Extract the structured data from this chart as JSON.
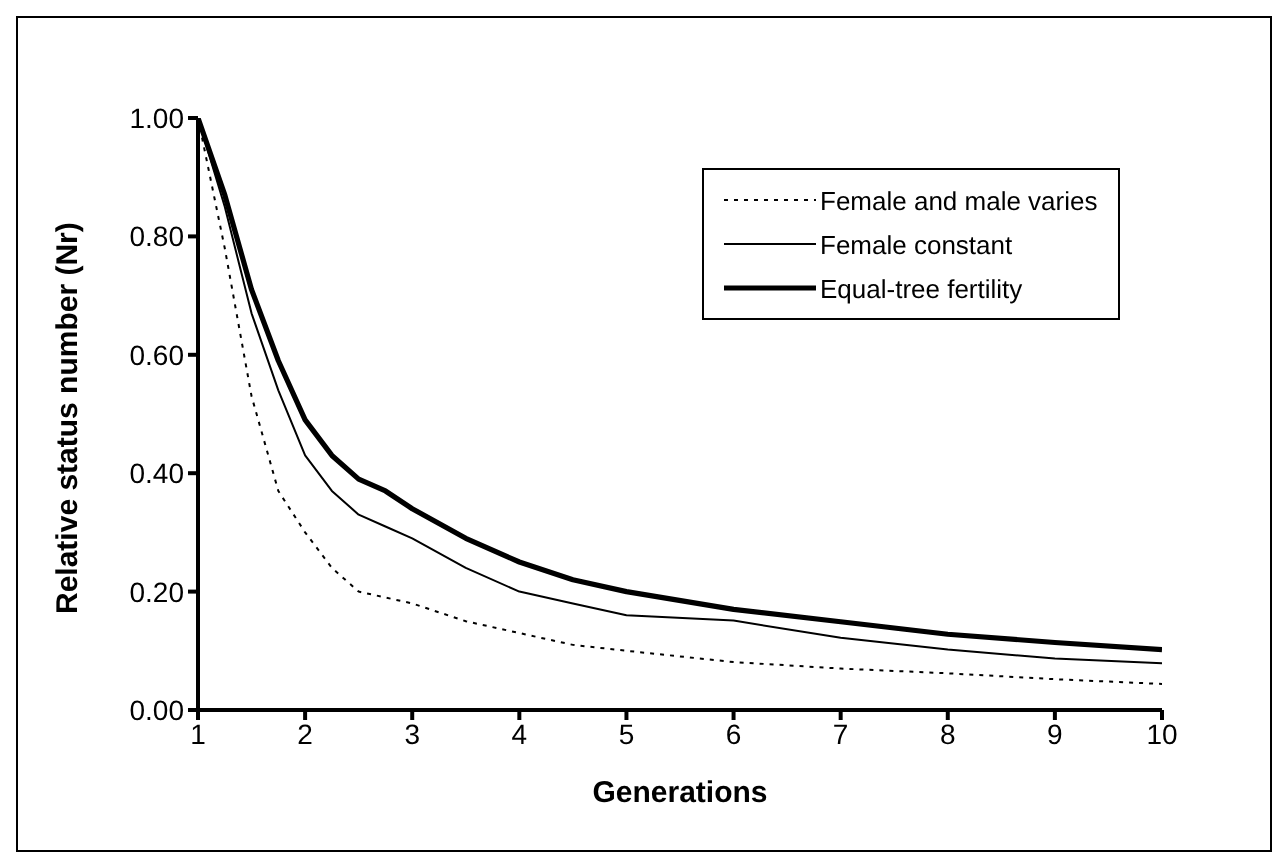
{
  "chart_data": {
    "type": "line",
    "xlabel": "Generations",
    "ylabel": "Relative status number (Nr)",
    "x": [
      1,
      1.25,
      1.5,
      1.75,
      2,
      2.25,
      2.5,
      2.75,
      3,
      3.5,
      4,
      4.5,
      5,
      6,
      7,
      8,
      9,
      10
    ],
    "series": [
      {
        "name": "Female and male varies",
        "color": "#000000",
        "line_style": "dotted",
        "values": [
          1,
          0.78,
          0.53,
          0.37,
          0.3,
          0.24,
          0.2,
          0.19,
          0.18,
          0.15,
          0.13,
          0.11,
          0.1,
          0.081,
          0.07,
          0.062,
          0.052,
          0.044
        ]
      },
      {
        "name": "Female constant",
        "color": "#000000",
        "line_style": "solid",
        "values": [
          1,
          0.85,
          0.67,
          0.54,
          0.43,
          0.37,
          0.33,
          0.31,
          0.29,
          0.24,
          0.2,
          0.18,
          0.16,
          0.151,
          0.122,
          0.102,
          0.087,
          0.079
        ]
      },
      {
        "name": "Equal-tree fertility",
        "color": "#000000",
        "line_style": "solid",
        "values": [
          1,
          0.87,
          0.71,
          0.59,
          0.49,
          0.43,
          0.39,
          0.37,
          0.34,
          0.29,
          0.25,
          0.22,
          0.2,
          0.17,
          0.149,
          0.128,
          0.114,
          0.102
        ]
      }
    ],
    "xlim": [
      1,
      10
    ],
    "xticks": [
      1,
      2,
      3,
      4,
      5,
      6,
      7,
      8,
      9,
      10
    ],
    "ylim": [
      0,
      1
    ],
    "yticks": [
      {
        "value": 0,
        "label": "0.00"
      },
      {
        "value": 0.2,
        "label": "0.20"
      },
      {
        "value": 0.4,
        "label": "0.40"
      },
      {
        "value": 0.6,
        "label": "0.60"
      },
      {
        "value": 0.8,
        "label": "0.80"
      },
      {
        "value": 1,
        "label": "1.00"
      }
    ],
    "grid": false,
    "legend": "top right",
    "marker": "none"
  }
}
